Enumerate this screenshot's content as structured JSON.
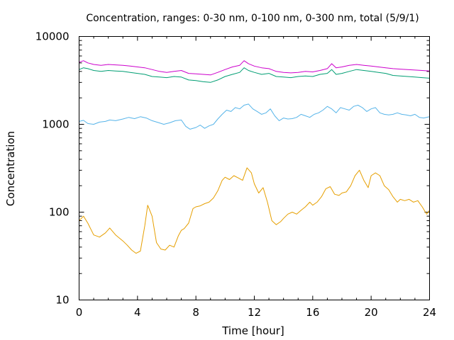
{
  "chart_data": {
    "type": "line",
    "title": "Concentration, ranges: 0-30 nm, 0-100 nm, 0-300 nm, total (5/9/1)",
    "xlabel": "Time [hour]",
    "ylabel": "Concentration",
    "xlim": [
      0,
      24
    ],
    "ylim": [
      10,
      10000
    ],
    "yscale": "log",
    "grid": false,
    "legend": "none",
    "x_ticks": [
      {
        "value": 0,
        "label": "0"
      },
      {
        "value": 4,
        "label": "4"
      },
      {
        "value": 8,
        "label": "8"
      },
      {
        "value": 12,
        "label": "12"
      },
      {
        "value": 16,
        "label": "16"
      },
      {
        "value": 20,
        "label": "20"
      },
      {
        "value": 24,
        "label": "24"
      }
    ],
    "y_ticks": [
      {
        "value": 10,
        "label": "10"
      },
      {
        "value": 100,
        "label": "100"
      },
      {
        "value": 1000,
        "label": "1000"
      },
      {
        "value": 10000,
        "label": "10000"
      }
    ],
    "series": [
      {
        "color": "#e69f00",
        "x": [
          0,
          0.3,
          0.6,
          1,
          1.4,
          1.8,
          2.1,
          2.5,
          3,
          3.3,
          3.6,
          3.9,
          4.2,
          4.5,
          4.7,
          5,
          5.3,
          5.6,
          5.9,
          6.2,
          6.5,
          6.8,
          7,
          7.2,
          7.5,
          7.8,
          8,
          8.3,
          8.6,
          8.9,
          9.2,
          9.5,
          9.8,
          10,
          10.3,
          10.6,
          10.9,
          11.2,
          11.5,
          11.8,
          12,
          12.3,
          12.6,
          12.9,
          13.2,
          13.5,
          13.8,
          14,
          14.3,
          14.6,
          14.9,
          15.2,
          15.5,
          15.8,
          16,
          16.3,
          16.6,
          16.9,
          17.2,
          17.5,
          17.8,
          18,
          18.3,
          18.6,
          18.9,
          19.2,
          19.5,
          19.8,
          20,
          20.3,
          20.6,
          20.9,
          21.2,
          21.5,
          21.8,
          22,
          22.3,
          22.6,
          22.9,
          23.2,
          23.5,
          23.8,
          24
        ],
        "y": [
          80,
          90,
          75,
          55,
          52,
          58,
          66,
          55,
          47,
          42,
          37,
          34,
          36,
          70,
          120,
          90,
          45,
          38,
          37,
          42,
          40,
          54,
          62,
          65,
          75,
          110,
          115,
          118,
          125,
          130,
          145,
          175,
          230,
          250,
          235,
          260,
          245,
          230,
          320,
          280,
          210,
          165,
          190,
          130,
          80,
          72,
          78,
          85,
          95,
          100,
          95,
          105,
          115,
          130,
          120,
          130,
          150,
          185,
          195,
          160,
          155,
          165,
          170,
          200,
          260,
          300,
          230,
          190,
          260,
          280,
          260,
          200,
          180,
          150,
          130,
          140,
          135,
          140,
          130,
          135,
          115,
          95,
          105
        ]
      },
      {
        "color": "#56b4e9",
        "x": [
          0,
          0.3,
          0.6,
          1,
          1.4,
          1.8,
          2.1,
          2.5,
          3,
          3.4,
          3.8,
          4.2,
          4.6,
          5,
          5.4,
          5.8,
          6.2,
          6.6,
          7,
          7.3,
          7.6,
          8,
          8.3,
          8.6,
          8.9,
          9.2,
          9.5,
          9.8,
          10.1,
          10.4,
          10.7,
          11,
          11.3,
          11.6,
          11.9,
          12.2,
          12.5,
          12.8,
          13.1,
          13.4,
          13.7,
          14,
          14.3,
          14.6,
          14.9,
          15.2,
          15.5,
          15.8,
          16.1,
          16.4,
          16.7,
          17,
          17.3,
          17.6,
          17.9,
          18.2,
          18.5,
          18.8,
          19.1,
          19.4,
          19.7,
          20,
          20.3,
          20.6,
          20.9,
          21.2,
          21.5,
          21.8,
          22.1,
          22.4,
          22.7,
          23,
          23.3,
          23.6,
          24
        ],
        "y": [
          1080,
          1110,
          1020,
          1000,
          1060,
          1080,
          1120,
          1100,
          1150,
          1200,
          1160,
          1220,
          1180,
          1100,
          1050,
          1000,
          1040,
          1100,
          1120,
          950,
          880,
          920,
          980,
          900,
          960,
          1000,
          1150,
          1300,
          1450,
          1400,
          1550,
          1500,
          1650,
          1700,
          1500,
          1400,
          1300,
          1350,
          1500,
          1250,
          1100,
          1180,
          1150,
          1160,
          1200,
          1300,
          1250,
          1200,
          1300,
          1350,
          1450,
          1600,
          1500,
          1350,
          1550,
          1500,
          1450,
          1600,
          1650,
          1550,
          1400,
          1500,
          1550,
          1350,
          1300,
          1280,
          1300,
          1350,
          1300,
          1280,
          1250,
          1300,
          1200,
          1180,
          1220
        ]
      },
      {
        "color": "#009e73",
        "x": [
          0,
          0.3,
          0.6,
          1,
          1.5,
          2,
          2.5,
          3,
          3.5,
          4,
          4.5,
          5,
          5.5,
          6,
          6.5,
          7,
          7.5,
          8,
          8.5,
          9,
          9.5,
          10,
          10.5,
          11,
          11.3,
          11.6,
          12,
          12.5,
          13,
          13.5,
          14,
          14.5,
          15,
          15.5,
          16,
          16.5,
          17,
          17.3,
          17.6,
          18,
          18.5,
          19,
          19.5,
          20,
          20.5,
          21,
          21.5,
          22,
          22.5,
          23,
          23.5,
          24
        ],
        "y": [
          4200,
          4400,
          4300,
          4100,
          4000,
          4100,
          4050,
          4000,
          3900,
          3800,
          3700,
          3500,
          3450,
          3400,
          3500,
          3450,
          3200,
          3150,
          3050,
          3000,
          3200,
          3500,
          3700,
          3900,
          4400,
          4100,
          3900,
          3700,
          3800,
          3500,
          3450,
          3400,
          3500,
          3550,
          3500,
          3700,
          3800,
          4200,
          3700,
          3800,
          4000,
          4200,
          4100,
          4000,
          3900,
          3800,
          3600,
          3550,
          3500,
          3450,
          3400,
          3350
        ]
      },
      {
        "color": "#cc00cc",
        "x": [
          0,
          0.3,
          0.6,
          1,
          1.5,
          2,
          2.5,
          3,
          3.5,
          4,
          4.5,
          5,
          5.5,
          6,
          6.5,
          7,
          7.5,
          8,
          8.5,
          9,
          9.5,
          10,
          10.5,
          11,
          11.3,
          11.6,
          12,
          12.5,
          13,
          13.5,
          14,
          14.5,
          15,
          15.5,
          16,
          16.5,
          17,
          17.3,
          17.6,
          18,
          18.5,
          19,
          19.5,
          20,
          20.5,
          21,
          21.5,
          22,
          22.5,
          23,
          23.5,
          24
        ],
        "y": [
          5100,
          5300,
          5000,
          4800,
          4700,
          4800,
          4750,
          4700,
          4600,
          4500,
          4400,
          4200,
          4000,
          3900,
          4000,
          4100,
          3800,
          3750,
          3700,
          3650,
          3900,
          4200,
          4500,
          4700,
          5300,
          4900,
          4600,
          4400,
          4300,
          4000,
          3900,
          3850,
          3900,
          4000,
          3950,
          4100,
          4300,
          4900,
          4400,
          4500,
          4700,
          4800,
          4700,
          4600,
          4500,
          4400,
          4300,
          4250,
          4200,
          4150,
          4100,
          4050
        ]
      }
    ]
  }
}
